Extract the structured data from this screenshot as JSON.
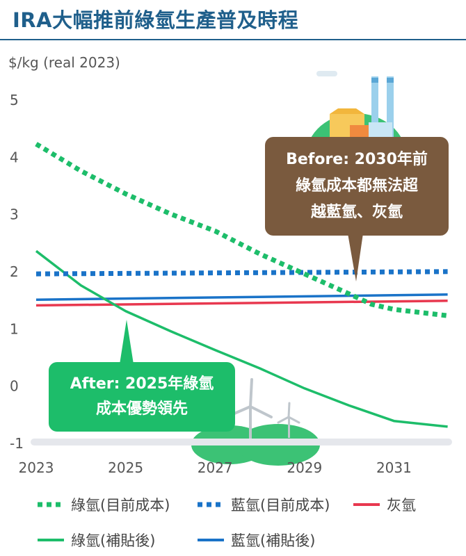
{
  "header": {
    "title": "IRA大幅推前綠氫生產普及時程"
  },
  "chart_data": {
    "type": "line",
    "ylabel": "$/kg (real 2023)",
    "ylim": [
      -1,
      5
    ],
    "yticks": [
      "5",
      "4",
      "3",
      "2",
      "1",
      "0",
      "-1"
    ],
    "xlim": [
      2023,
      2032.3
    ],
    "xticks": [
      "2023",
      "2025",
      "2027",
      "2029",
      "2031"
    ],
    "grid": false,
    "legend_position": "bottom",
    "series": [
      {
        "name": "綠氫(目前成本)",
        "style": "dotted",
        "color": "#1dbd6a",
        "x": [
          2023,
          2024,
          2025,
          2026,
          2027,
          2028,
          2029,
          2030,
          2030.5,
          2031,
          2032.2
        ],
        "y": [
          4.22,
          3.75,
          3.35,
          3.0,
          2.7,
          2.3,
          1.95,
          1.6,
          1.42,
          1.33,
          1.22
        ]
      },
      {
        "name": "藍氫(目前成本)",
        "style": "dotted",
        "color": "#1a73c8",
        "x": [
          2023,
          2032.2
        ],
        "y": [
          1.95,
          1.99
        ]
      },
      {
        "name": "灰氫",
        "style": "solid",
        "color": "#e8384f",
        "x": [
          2023,
          2032.2
        ],
        "y": [
          1.4,
          1.48
        ]
      },
      {
        "name": "綠氫(補貼後)",
        "style": "solid",
        "color": "#1dbd6a",
        "x": [
          2023,
          2024,
          2025,
          2026,
          2027,
          2028,
          2029,
          2030,
          2031,
          2032.2
        ],
        "y": [
          2.35,
          1.75,
          1.3,
          0.95,
          0.62,
          0.3,
          -0.05,
          -0.35,
          -0.62,
          -0.72
        ]
      },
      {
        "name": "藍氫(補貼後)",
        "style": "solid",
        "color": "#1a73c8",
        "x": [
          2023,
          2032.2
        ],
        "y": [
          1.5,
          1.59
        ]
      }
    ],
    "annotations": {
      "before": [
        "Before: 2030年前",
        "綠氫成本都無法超",
        "越藍氫、灰氫"
      ],
      "after": [
        "After: 2025年綠氫",
        "成本優勢領先"
      ]
    }
  }
}
